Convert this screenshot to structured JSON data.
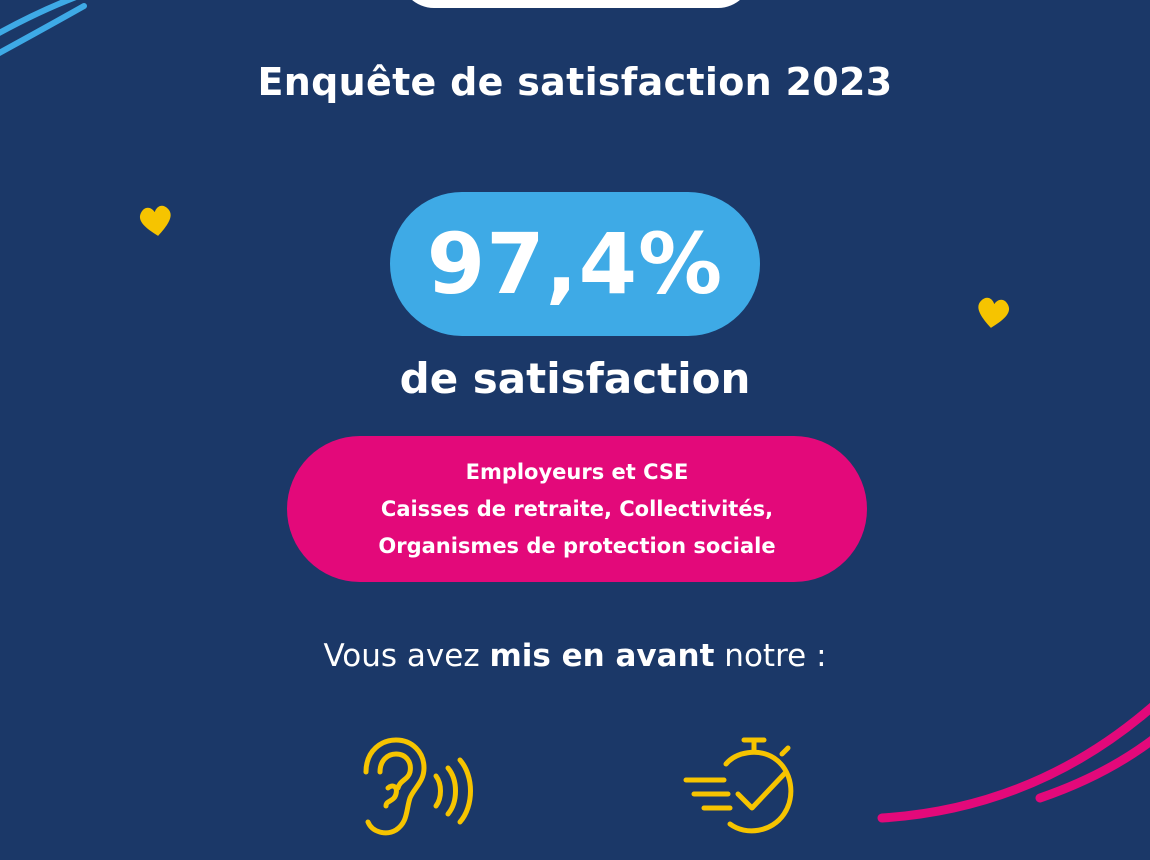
{
  "title": "Enquête de satisfaction 2023",
  "score": "97,4%",
  "score_label": "de satisfaction",
  "audience": {
    "line1": "Employeurs et CSE",
    "line2": "Caisses de retraite, Collectivités,",
    "line3": "Organismes de protection sociale"
  },
  "intro": {
    "before": "Vous avez ",
    "bold": "mis en avant",
    "after": " notre :"
  },
  "icons": [
    "ear-listening-icon",
    "stopwatch-check-icon"
  ],
  "decorations": [
    "heart-icon",
    "heart-icon"
  ],
  "colors": {
    "background": "#1b3868",
    "score_pill": "#3eaae6",
    "audience_pill": "#e3097a",
    "accent_yellow": "#f6c400",
    "stroke_blue": "#3eaae6",
    "stroke_pink": "#e3097a"
  }
}
